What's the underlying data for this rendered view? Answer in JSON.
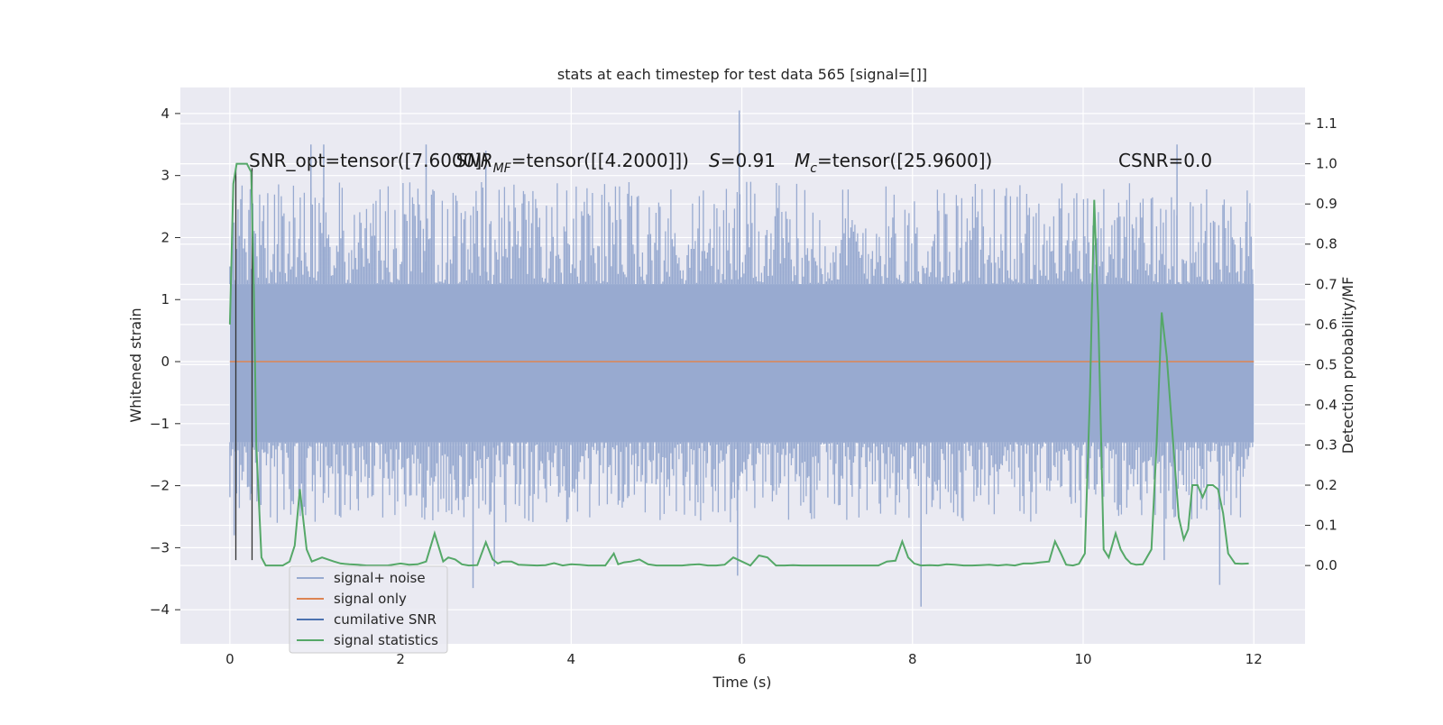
{
  "chart_data": {
    "type": "line",
    "title": "stats at each timestep for test data 565 [signal=[]]",
    "xlabel": "Time (s)",
    "ylabel_left": "Whitened strain",
    "ylabel_right": "Detection probability/MF",
    "xlim": [
      -0.58,
      12.6
    ],
    "ylim_left": [
      -4.55,
      4.42
    ],
    "ylim_right": [
      -0.195,
      1.19
    ],
    "xticks": [
      0,
      2,
      4,
      6,
      8,
      10,
      12
    ],
    "xtick_labels": [
      "0",
      "2",
      "4",
      "6",
      "8",
      "10",
      "12"
    ],
    "yticks_left": [
      -4,
      -3,
      -2,
      -1,
      0,
      1,
      2,
      3,
      4
    ],
    "ytick_labels_left": [
      "−4",
      "−3",
      "−2",
      "−1",
      "0",
      "1",
      "2",
      "3",
      "4"
    ],
    "yticks_right": [
      0.0,
      0.1,
      0.2,
      0.3,
      0.4,
      0.5,
      0.6,
      0.7,
      0.8,
      0.9,
      1.0,
      1.1
    ],
    "ytick_labels_right": [
      "0.0",
      "0.1",
      "0.2",
      "0.3",
      "0.4",
      "0.5",
      "0.6",
      "0.7",
      "0.8",
      "0.9",
      "1.0",
      "1.1"
    ],
    "grid": true,
    "legend_position": "lower-left",
    "colors": {
      "background": "#eaeaf2",
      "grid": "#ffffff",
      "signal_noise": "#98aad0",
      "signal_only": "#dd8452",
      "cumulative_snr": "#4c72b0",
      "signal_statistics": "#55a868",
      "cumulative_snr_lines": "#333333"
    },
    "annotations": {
      "snr_opt": "SNR_opt=tensor([7.6000])",
      "snr_mf": "SNR",
      "snr_mf_sub": "MF",
      "snr_mf_value": "=tensor([[4.2000]])",
      "s_label": "S",
      "s_value": "=0.91",
      "mc_label": "M",
      "mc_sub": "c",
      "mc_value": "=tensor([25.9600])",
      "csnr": "CSNR=0.0"
    },
    "series": [
      {
        "name": "signal+ noise",
        "axis": "left",
        "style": "dense-noise",
        "x_range": [
          0,
          12
        ],
        "band": [
          -1.3,
          1.25
        ],
        "peak_range": [
          -2.6,
          2.9
        ],
        "spikes": [
          {
            "x": 0.95,
            "y": 3.5
          },
          {
            "x": 1.1,
            "y": 3.5
          },
          {
            "x": 2.3,
            "y": 3.5
          },
          {
            "x": 3.0,
            "y": 3.4
          },
          {
            "x": 5.97,
            "y": 4.05
          },
          {
            "x": 11.1,
            "y": 3.5
          },
          {
            "x": 0.05,
            "y": -2.8
          },
          {
            "x": 2.85,
            "y": -3.65
          },
          {
            "x": 3.1,
            "y": -3.3
          },
          {
            "x": 5.95,
            "y": -3.45
          },
          {
            "x": 8.1,
            "y": -3.95
          },
          {
            "x": 11.6,
            "y": -3.6
          },
          {
            "x": 10.95,
            "y": -3.2
          }
        ]
      },
      {
        "name": "signal only",
        "axis": "left",
        "x": [
          0,
          12
        ],
        "y": [
          0,
          0
        ]
      },
      {
        "name": "cumilative SNR",
        "axis": "left",
        "style": "vertical-markers",
        "x": [
          0.07,
          0.26
        ],
        "y_bottom": -3.2,
        "y_top": [
          3.12,
          3.12
        ]
      },
      {
        "name": "signal statistics",
        "axis": "right",
        "x": [
          0.0,
          0.04,
          0.08,
          0.14,
          0.2,
          0.25,
          0.28,
          0.31,
          0.37,
          0.42,
          0.48,
          0.55,
          0.62,
          0.7,
          0.76,
          0.82,
          0.9,
          0.96,
          1.02,
          1.08,
          1.15,
          1.22,
          1.3,
          1.4,
          1.5,
          1.6,
          1.7,
          1.85,
          2.0,
          2.1,
          2.2,
          2.3,
          2.4,
          2.5,
          2.56,
          2.64,
          2.72,
          2.8,
          2.9,
          3.0,
          3.08,
          3.14,
          3.2,
          3.3,
          3.38,
          3.5,
          3.6,
          3.7,
          3.8,
          3.9,
          4.0,
          4.1,
          4.2,
          4.3,
          4.4,
          4.5,
          4.55,
          4.62,
          4.7,
          4.8,
          4.9,
          5.0,
          5.1,
          5.2,
          5.3,
          5.4,
          5.5,
          5.6,
          5.7,
          5.8,
          5.9,
          6.0,
          6.1,
          6.2,
          6.3,
          6.4,
          6.5,
          6.6,
          6.7,
          6.8,
          6.9,
          7.0,
          7.1,
          7.2,
          7.3,
          7.4,
          7.5,
          7.6,
          7.7,
          7.8,
          7.88,
          7.95,
          8.02,
          8.1,
          8.2,
          8.3,
          8.4,
          8.5,
          8.6,
          8.7,
          8.8,
          8.9,
          9.0,
          9.1,
          9.2,
          9.3,
          9.4,
          9.5,
          9.6,
          9.67,
          9.74,
          9.8,
          9.88,
          9.95,
          10.02,
          10.08,
          10.13,
          10.18,
          10.24,
          10.3,
          10.38,
          10.44,
          10.5,
          10.56,
          10.62,
          10.7,
          10.8,
          10.86,
          10.92,
          10.98,
          11.05,
          11.12,
          11.18,
          11.23,
          11.28,
          11.34,
          11.4,
          11.46,
          11.52,
          11.58,
          11.64,
          11.7,
          11.78,
          11.86,
          11.94
        ],
        "y": [
          0.6,
          0.95,
          1.0,
          1.0,
          1.0,
          0.98,
          0.7,
          0.3,
          0.02,
          0.0,
          0.0,
          0.0,
          0.0,
          0.01,
          0.05,
          0.19,
          0.04,
          0.01,
          0.015,
          0.02,
          0.015,
          0.01,
          0.005,
          0.003,
          0.002,
          0.0,
          0.0,
          0.0,
          0.005,
          0.002,
          0.003,
          0.01,
          0.08,
          0.01,
          0.02,
          0.015,
          0.003,
          0.0,
          0.001,
          0.058,
          0.015,
          0.005,
          0.01,
          0.01,
          0.002,
          0.001,
          0.0,
          0.001,
          0.006,
          0.0,
          0.003,
          0.002,
          0.0,
          0.0,
          0.0,
          0.03,
          0.003,
          0.008,
          0.01,
          0.015,
          0.003,
          0.0,
          0.0,
          0.0,
          0.0,
          0.002,
          0.003,
          0.0,
          0.0,
          0.002,
          0.02,
          0.01,
          0.0,
          0.025,
          0.02,
          0.0,
          0.0,
          0.001,
          0.0,
          0.0,
          0.0,
          0.0,
          0.0,
          0.0,
          0.0,
          0.0,
          0.0,
          0.0,
          0.01,
          0.012,
          0.06,
          0.02,
          0.005,
          0.0,
          0.001,
          0.0,
          0.003,
          0.002,
          0.0,
          0.0,
          0.001,
          0.002,
          0.0,
          0.002,
          0.0,
          0.005,
          0.005,
          0.008,
          0.01,
          0.06,
          0.03,
          0.002,
          0.0,
          0.004,
          0.03,
          0.43,
          0.91,
          0.6,
          0.04,
          0.02,
          0.08,
          0.04,
          0.018,
          0.005,
          0.002,
          0.003,
          0.04,
          0.3,
          0.63,
          0.52,
          0.32,
          0.12,
          0.065,
          0.09,
          0.2,
          0.2,
          0.17,
          0.2,
          0.2,
          0.19,
          0.13,
          0.03,
          0.005,
          0.004,
          0.005
        ]
      }
    ]
  }
}
